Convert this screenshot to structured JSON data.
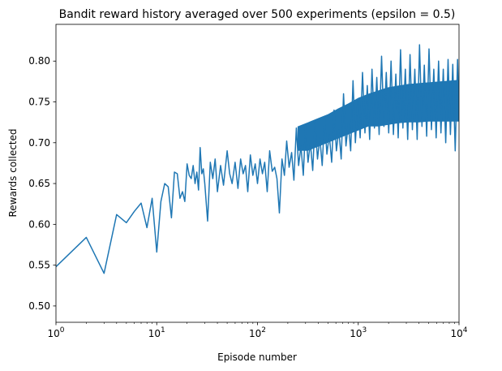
{
  "chart_data": {
    "type": "line",
    "title": "Bandit reward history averaged over 500 experiments (epsilon = 0.5)",
    "xlabel": "Episode number",
    "ylabel": "Rewards collected",
    "xscale": "log",
    "xlim": [
      1,
      10000
    ],
    "ylim": [
      0.48,
      0.845
    ],
    "grid": false,
    "x_ticks": [
      {
        "value": 1,
        "base": "10",
        "exp": "0"
      },
      {
        "value": 10,
        "base": "10",
        "exp": "1"
      },
      {
        "value": 100,
        "base": "10",
        "exp": "2"
      },
      {
        "value": 1000,
        "base": "10",
        "exp": "3"
      },
      {
        "value": 10000,
        "base": "10",
        "exp": "4"
      }
    ],
    "y_ticks": [
      {
        "value": 0.5,
        "label": "0.50"
      },
      {
        "value": 0.55,
        "label": "0.55"
      },
      {
        "value": 0.6,
        "label": "0.60"
      },
      {
        "value": 0.65,
        "label": "0.65"
      },
      {
        "value": 0.7,
        "label": "0.70"
      },
      {
        "value": 0.75,
        "label": "0.75"
      },
      {
        "value": 0.8,
        "label": "0.80"
      }
    ],
    "series": [
      {
        "name": "epsilon = 0.5",
        "color": "#1f77b4",
        "points": [
          [
            1,
            0.548
          ],
          [
            2,
            0.584
          ],
          [
            3,
            0.54
          ],
          [
            4,
            0.612
          ],
          [
            5,
            0.602
          ],
          [
            6,
            0.616
          ],
          [
            7,
            0.626
          ],
          [
            8,
            0.596
          ],
          [
            9,
            0.632
          ],
          [
            10,
            0.566
          ],
          [
            11,
            0.628
          ],
          [
            12,
            0.65
          ],
          [
            13,
            0.646
          ],
          [
            14,
            0.608
          ],
          [
            15,
            0.664
          ],
          [
            16,
            0.662
          ],
          [
            17,
            0.632
          ],
          [
            18,
            0.64
          ],
          [
            19,
            0.628
          ],
          [
            20,
            0.674
          ],
          [
            21,
            0.66
          ],
          [
            22,
            0.656
          ],
          [
            23,
            0.672
          ],
          [
            24,
            0.65
          ],
          [
            25,
            0.664
          ],
          [
            26,
            0.642
          ],
          [
            27,
            0.694
          ],
          [
            28,
            0.662
          ],
          [
            29,
            0.668
          ],
          [
            30,
            0.65
          ],
          [
            32,
            0.604
          ],
          [
            34,
            0.676
          ],
          [
            36,
            0.656
          ],
          [
            38,
            0.68
          ],
          [
            40,
            0.64
          ],
          [
            43,
            0.672
          ],
          [
            46,
            0.648
          ],
          [
            50,
            0.69
          ],
          [
            53,
            0.662
          ],
          [
            56,
            0.65
          ],
          [
            60,
            0.676
          ],
          [
            64,
            0.644
          ],
          [
            68,
            0.68
          ],
          [
            72,
            0.662
          ],
          [
            76,
            0.672
          ],
          [
            80,
            0.64
          ],
          [
            85,
            0.685
          ],
          [
            90,
            0.66
          ],
          [
            95,
            0.674
          ],
          [
            100,
            0.65
          ],
          [
            106,
            0.68
          ],
          [
            112,
            0.662
          ],
          [
            118,
            0.676
          ],
          [
            125,
            0.64
          ],
          [
            132,
            0.69
          ],
          [
            140,
            0.665
          ],
          [
            148,
            0.67
          ],
          [
            156,
            0.656
          ],
          [
            165,
            0.614
          ],
          [
            175,
            0.68
          ],
          [
            185,
            0.66
          ],
          [
            195,
            0.702
          ],
          [
            206,
            0.67
          ],
          [
            218,
            0.688
          ],
          [
            230,
            0.654
          ],
          [
            243,
            0.718
          ],
          [
            256,
            0.672
          ],
          [
            270,
            0.696
          ],
          [
            285,
            0.66
          ],
          [
            300,
            0.722
          ],
          [
            317,
            0.676
          ],
          [
            335,
            0.7
          ],
          [
            353,
            0.666
          ],
          [
            373,
            0.726
          ],
          [
            394,
            0.68
          ],
          [
            416,
            0.706
          ],
          [
            439,
            0.672
          ],
          [
            463,
            0.73
          ],
          [
            489,
            0.686
          ],
          [
            516,
            0.71
          ],
          [
            545,
            0.676
          ],
          [
            575,
            0.74
          ],
          [
            607,
            0.69
          ],
          [
            641,
            0.716
          ],
          [
            677,
            0.68
          ],
          [
            715,
            0.76
          ],
          [
            755,
            0.696
          ],
          [
            797,
            0.724
          ],
          [
            841,
            0.69
          ],
          [
            888,
            0.776
          ],
          [
            937,
            0.7
          ],
          [
            990,
            0.752
          ],
          [
            1045,
            0.706
          ],
          [
            1103,
            0.786
          ],
          [
            1165,
            0.712
          ],
          [
            1230,
            0.77
          ],
          [
            1298,
            0.704
          ],
          [
            1370,
            0.79
          ],
          [
            1447,
            0.718
          ],
          [
            1527,
            0.78
          ],
          [
            1613,
            0.71
          ],
          [
            1703,
            0.806
          ],
          [
            1798,
            0.72
          ],
          [
            1898,
            0.786
          ],
          [
            2004,
            0.712
          ],
          [
            2116,
            0.8
          ],
          [
            2234,
            0.71
          ],
          [
            2359,
            0.784
          ],
          [
            2490,
            0.706
          ],
          [
            2629,
            0.814
          ],
          [
            2776,
            0.718
          ],
          [
            2930,
            0.79
          ],
          [
            3094,
            0.704
          ],
          [
            3266,
            0.808
          ],
          [
            3448,
            0.716
          ],
          [
            3641,
            0.79
          ],
          [
            3844,
            0.704
          ],
          [
            4058,
            0.82
          ],
          [
            4285,
            0.72
          ],
          [
            4524,
            0.795
          ],
          [
            4776,
            0.708
          ],
          [
            5042,
            0.815
          ],
          [
            5324,
            0.716
          ],
          [
            5621,
            0.79
          ],
          [
            5934,
            0.706
          ],
          [
            6265,
            0.8
          ],
          [
            6615,
            0.712
          ],
          [
            6984,
            0.79
          ],
          [
            7373,
            0.7
          ],
          [
            7785,
            0.802
          ],
          [
            8219,
            0.71
          ],
          [
            8677,
            0.796
          ],
          [
            9161,
            0.69
          ],
          [
            9672,
            0.802
          ],
          [
            10000,
            0.73
          ]
        ],
        "band": {
          "x": [
            250,
            316,
            398,
            501,
            631,
            794,
            1000,
            1259,
            1585,
            1995,
            2512,
            3162,
            3981,
            5012,
            6310,
            7943,
            10000
          ],
          "low": [
            0.69,
            0.69,
            0.695,
            0.7,
            0.705,
            0.71,
            0.715,
            0.72,
            0.72,
            0.722,
            0.724,
            0.725,
            0.725,
            0.726,
            0.726,
            0.726,
            0.726
          ],
          "high": [
            0.72,
            0.725,
            0.73,
            0.735,
            0.742,
            0.748,
            0.755,
            0.76,
            0.764,
            0.768,
            0.77,
            0.772,
            0.773,
            0.774,
            0.775,
            0.776,
            0.777
          ]
        }
      }
    ]
  }
}
